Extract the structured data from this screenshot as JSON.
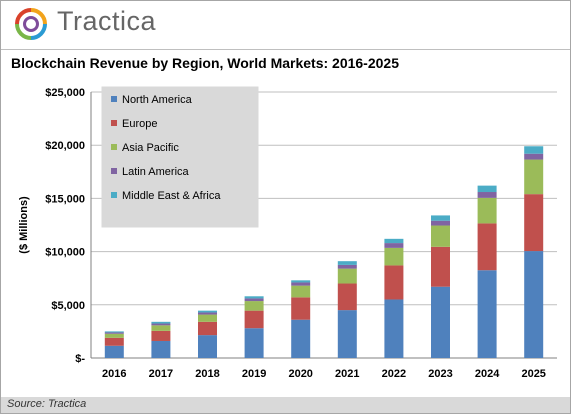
{
  "header": {
    "brand_name": "Tractica"
  },
  "title": "Blockchain Revenue by Region, World Markets: 2016-2025",
  "source": "Source: Tractica",
  "colors": {
    "north_america": "#4f81bd",
    "europe": "#c0504d",
    "asia_pacific": "#9bbb59",
    "latin_america": "#8064a2",
    "middle_east_africa": "#4bacc6",
    "legend_bg": "#d9d9d9"
  },
  "chart_data": {
    "type": "bar",
    "stacked": true,
    "categories": [
      "2016",
      "2017",
      "2018",
      "2019",
      "2020",
      "2021",
      "2022",
      "2023",
      "2024",
      "2025"
    ],
    "series": [
      {
        "name": "North America",
        "values": [
          1150,
          1600,
          2150,
          2800,
          3600,
          4500,
          5500,
          6700,
          8250,
          10050
        ]
      },
      {
        "name": "Europe",
        "values": [
          750,
          950,
          1250,
          1650,
          2100,
          2500,
          3200,
          3750,
          4400,
          5350
        ]
      },
      {
        "name": "Asia Pacific",
        "values": [
          380,
          520,
          680,
          900,
          1100,
          1400,
          1650,
          2000,
          2400,
          3250
        ]
      },
      {
        "name": "Latin America",
        "values": [
          120,
          170,
          200,
          250,
          300,
          350,
          450,
          450,
          550,
          550
        ]
      },
      {
        "name": "Middle East & Africa",
        "values": [
          100,
          160,
          170,
          200,
          200,
          350,
          400,
          500,
          600,
          700
        ]
      }
    ],
    "xlabel": "",
    "ylabel": "($ Millions)",
    "ylim": [
      0,
      25000
    ],
    "yticks": [
      0,
      5000,
      10000,
      15000,
      20000,
      25000
    ],
    "ytick_labels": [
      "$-",
      "$5,000",
      "$10,000",
      "$15,000",
      "$20,000",
      "$25,000"
    ],
    "grid": true,
    "legend_position": "top-left"
  }
}
